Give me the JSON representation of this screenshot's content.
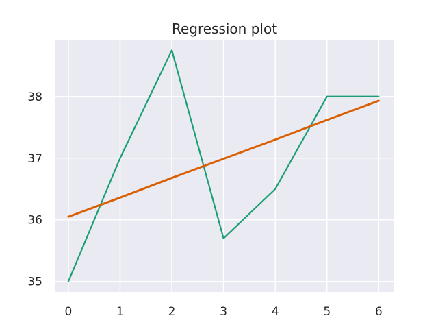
{
  "chart_data": {
    "type": "line",
    "title": "Regression plot",
    "xlabel": "",
    "ylabel": "",
    "x": [
      0,
      1,
      2,
      3,
      4,
      5,
      6
    ],
    "xlim": [
      -0.25,
      6.3
    ],
    "ylim": [
      34.83,
      38.92
    ],
    "xticks": [
      0,
      1,
      2,
      3,
      4,
      5,
      6
    ],
    "yticks": [
      35,
      36,
      37,
      38
    ],
    "grid": true,
    "legend": "none",
    "background_color": "#EAEAF2",
    "series": [
      {
        "role": "data",
        "values": [
          35.0,
          37.0,
          38.75,
          35.7,
          36.5,
          38.0,
          38.0
        ],
        "color": "#1B9E77"
      },
      {
        "role": "fit",
        "values": [
          36.05,
          36.36,
          36.68,
          36.99,
          37.3,
          37.62,
          37.93
        ],
        "color": "#D95F02"
      }
    ]
  }
}
